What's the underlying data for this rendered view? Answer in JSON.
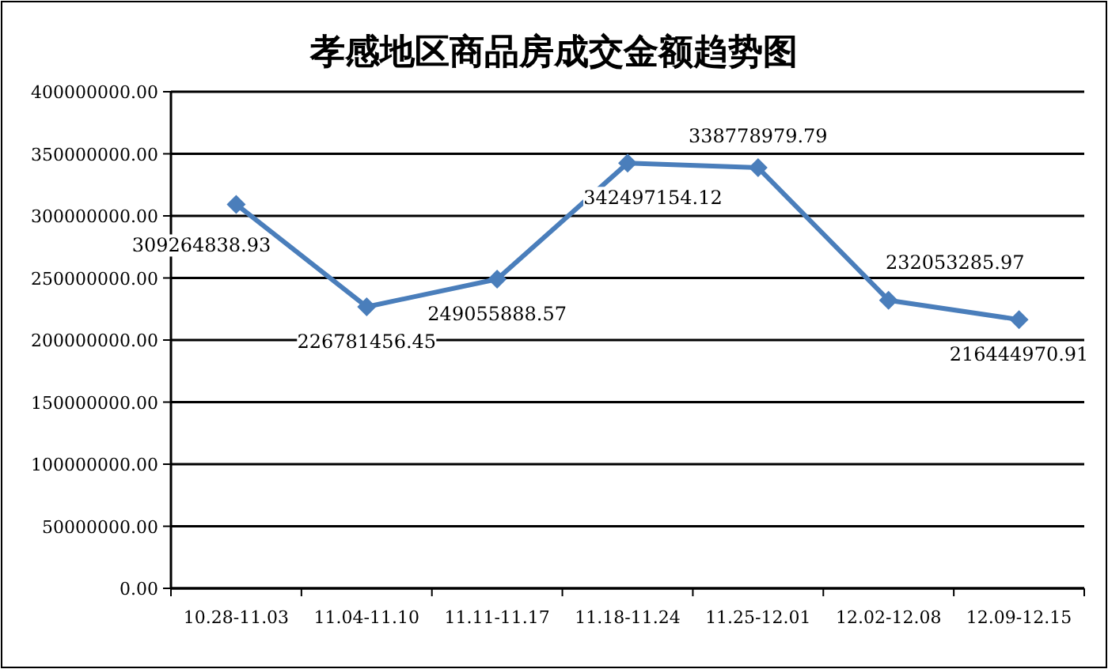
{
  "chart_data": {
    "type": "line",
    "title": "孝感地区商品房成交金额趋势图",
    "categories": [
      "10.28-11.03",
      "11.04-11.10",
      "11.11-11.17",
      "11.18-11.24",
      "11.25-12.01",
      "12.02-12.08",
      "12.09-12.15"
    ],
    "series": [
      {
        "color": "#4a7ebb",
        "values": [
          309264838.93,
          226781456.45,
          249055888.57,
          342497154.12,
          338778979.79,
          232053285.97,
          216444970.91
        ],
        "value_labels": [
          "309264838.93",
          "226781456.45",
          "249055888.57",
          "342497154.12",
          "338778979.79",
          "232053285.97",
          "216444970.91"
        ]
      }
    ],
    "ylim": [
      0,
      400000000
    ],
    "yticks": [
      {
        "value": 0,
        "label": "0.00"
      },
      {
        "value": 50000000,
        "label": "50000000.00"
      },
      {
        "value": 100000000,
        "label": "100000000.00"
      },
      {
        "value": 150000000,
        "label": "150000000.00"
      },
      {
        "value": 200000000,
        "label": "200000000.00"
      },
      {
        "value": 250000000,
        "label": "250000000.00"
      },
      {
        "value": 300000000,
        "label": "300000000.00"
      },
      {
        "value": 350000000,
        "label": "350000000.00"
      },
      {
        "value": 400000000,
        "label": "400000000.00"
      }
    ],
    "grid": "y",
    "marker": "diamond",
    "line_style": "solid"
  }
}
